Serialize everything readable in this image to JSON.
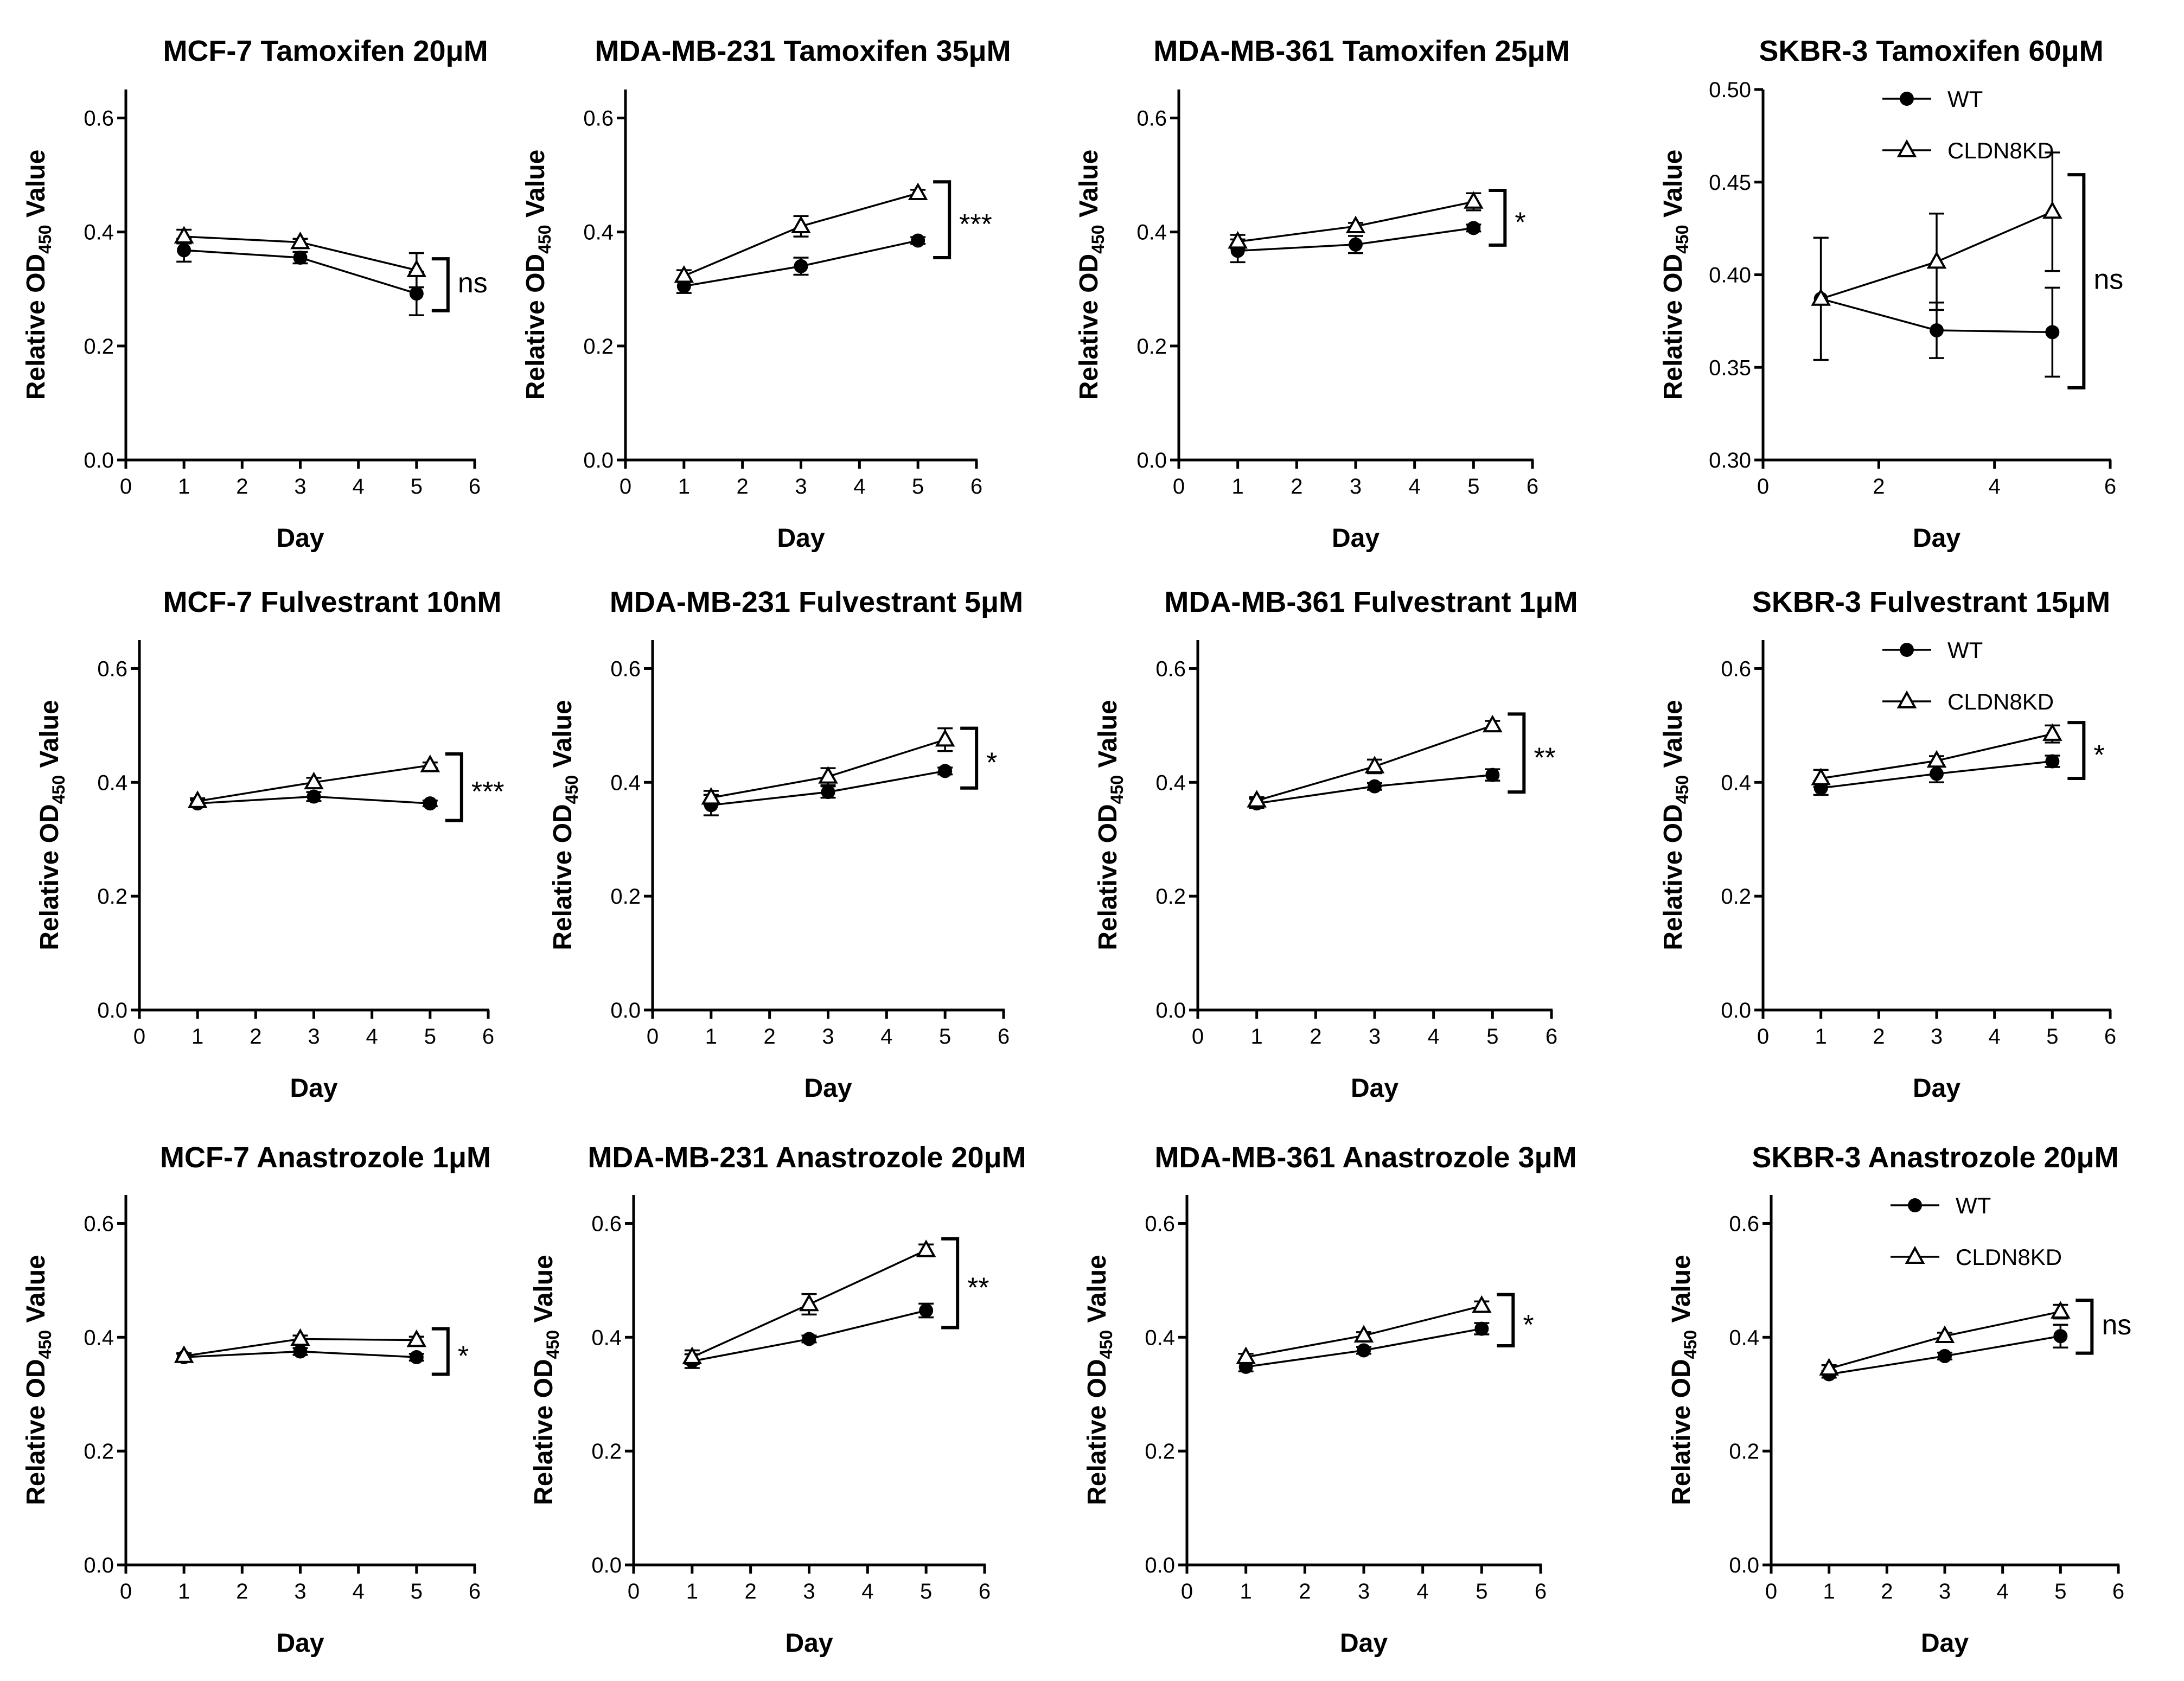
{
  "figure": {
    "legend": {
      "wt_label": "WT",
      "kd_label": "CLDN8KD"
    }
  },
  "chart_data": [
    {
      "type": "line",
      "title": "MCF-7 Tamoxifen 20μM",
      "xlabel": "Day",
      "ylabel": "Relative OD450 Value",
      "xlim": [
        0,
        6
      ],
      "ylim": [
        0,
        0.65
      ],
      "xticks": [
        0,
        1,
        2,
        3,
        4,
        5,
        6
      ],
      "yticks": [
        0.0,
        0.2,
        0.4,
        0.6
      ],
      "ytick_labels": [
        "0.0",
        "0.2",
        "0.4",
        "0.6"
      ],
      "x": [
        1,
        3,
        5
      ],
      "series": [
        {
          "name": "WT",
          "marker": "circle",
          "values": [
            0.368,
            0.355,
            0.292
          ],
          "errors": [
            0.02,
            0.01,
            0.038
          ]
        },
        {
          "name": "CLDN8KD",
          "marker": "triangle",
          "values": [
            0.392,
            0.382,
            0.333
          ],
          "errors": [
            0.012,
            0.006,
            0.03
          ]
        }
      ],
      "significance": "ns",
      "legend_shown": false
    },
    {
      "type": "line",
      "title": "MDA-MB-231 Tamoxifen 35μM",
      "xlabel": "Day",
      "ylabel": "Relative OD450 Value",
      "xlim": [
        0,
        6
      ],
      "ylim": [
        0,
        0.65
      ],
      "xticks": [
        0,
        1,
        2,
        3,
        4,
        5,
        6
      ],
      "yticks": [
        0.0,
        0.2,
        0.4,
        0.6
      ],
      "ytick_labels": [
        "0.0",
        "0.2",
        "0.4",
        "0.6"
      ],
      "x": [
        1,
        3,
        5
      ],
      "series": [
        {
          "name": "WT",
          "marker": "circle",
          "values": [
            0.305,
            0.34,
            0.385
          ],
          "errors": [
            0.012,
            0.015,
            0.006
          ]
        },
        {
          "name": "CLDN8KD",
          "marker": "triangle",
          "values": [
            0.323,
            0.41,
            0.468
          ],
          "errors": [
            0.01,
            0.018,
            0.006
          ]
        }
      ],
      "significance": "***",
      "legend_shown": false
    },
    {
      "type": "line",
      "title": "MDA-MB-361 Tamoxifen 25μM",
      "xlabel": "Day",
      "ylabel": "Relative OD450 Value",
      "xlim": [
        0,
        6
      ],
      "ylim": [
        0,
        0.65
      ],
      "xticks": [
        0,
        1,
        2,
        3,
        4,
        5,
        6
      ],
      "yticks": [
        0.0,
        0.2,
        0.4,
        0.6
      ],
      "ytick_labels": [
        "0.0",
        "0.2",
        "0.4",
        "0.6"
      ],
      "x": [
        1,
        3,
        5
      ],
      "series": [
        {
          "name": "WT",
          "marker": "circle",
          "values": [
            0.367,
            0.378,
            0.407
          ],
          "errors": [
            0.02,
            0.015,
            0.006
          ]
        },
        {
          "name": "CLDN8KD",
          "marker": "triangle",
          "values": [
            0.383,
            0.41,
            0.453
          ],
          "errors": [
            0.012,
            0.006,
            0.015
          ]
        }
      ],
      "significance": "*",
      "legend_shown": false
    },
    {
      "type": "line",
      "title": "SKBR-3 Tamoxifen 60μM",
      "xlabel": "Day",
      "ylabel": "Relative OD450 Value",
      "xlim": [
        0,
        6
      ],
      "ylim": [
        0.3,
        0.5
      ],
      "xticks": [
        0,
        2,
        4,
        6
      ],
      "yticks": [
        0.3,
        0.35,
        0.4,
        0.45,
        0.5
      ],
      "ytick_labels": [
        "0.30",
        "0.35",
        "0.40",
        "0.45",
        "0.50"
      ],
      "x": [
        1,
        3,
        5
      ],
      "series": [
        {
          "name": "WT",
          "marker": "circle",
          "values": [
            0.387,
            0.37,
            0.369
          ],
          "errors": [
            0.033,
            0.015,
            0.024
          ]
        },
        {
          "name": "CLDN8KD",
          "marker": "triangle",
          "values": [
            0.387,
            0.407,
            0.434
          ],
          "errors": [
            0.033,
            0.026,
            0.032
          ]
        }
      ],
      "significance": "ns",
      "legend_shown": true
    },
    {
      "type": "line",
      "title": "MCF-7 Fulvestrant 10nM",
      "xlabel": "Day",
      "ylabel": "Relative OD450 Value",
      "xlim": [
        0,
        6
      ],
      "ylim": [
        0,
        0.65
      ],
      "xticks": [
        0,
        1,
        2,
        3,
        4,
        5,
        6
      ],
      "yticks": [
        0.0,
        0.2,
        0.4,
        0.6
      ],
      "ytick_labels": [
        "0.0",
        "0.2",
        "0.4",
        "0.6"
      ],
      "x": [
        1,
        3,
        5
      ],
      "series": [
        {
          "name": "WT",
          "marker": "circle",
          "values": [
            0.363,
            0.375,
            0.363
          ],
          "errors": [
            0.006,
            0.008,
            0.005
          ]
        },
        {
          "name": "CLDN8KD",
          "marker": "triangle",
          "values": [
            0.367,
            0.4,
            0.43
          ],
          "errors": [
            0.005,
            0.008,
            0.005
          ]
        }
      ],
      "significance": "***",
      "legend_shown": false
    },
    {
      "type": "line",
      "title": "MDA-MB-231 Fulvestrant 5μM",
      "xlabel": "Day",
      "ylabel": "Relative OD450 Value",
      "xlim": [
        0,
        6
      ],
      "ylim": [
        0,
        0.65
      ],
      "xticks": [
        0,
        1,
        2,
        3,
        4,
        5,
        6
      ],
      "yticks": [
        0.0,
        0.2,
        0.4,
        0.6
      ],
      "ytick_labels": [
        "0.0",
        "0.2",
        "0.4",
        "0.6"
      ],
      "x": [
        1,
        3,
        5
      ],
      "series": [
        {
          "name": "WT",
          "marker": "circle",
          "values": [
            0.36,
            0.383,
            0.42
          ],
          "errors": [
            0.018,
            0.01,
            0.006
          ]
        },
        {
          "name": "CLDN8KD",
          "marker": "triangle",
          "values": [
            0.373,
            0.41,
            0.475
          ],
          "errors": [
            0.012,
            0.015,
            0.02
          ]
        }
      ],
      "significance": "*",
      "legend_shown": false
    },
    {
      "type": "line",
      "title": "MDA-MB-361 Fulvestrant 1μM",
      "xlabel": "Day",
      "ylabel": "Relative OD450 Value",
      "xlim": [
        0,
        6
      ],
      "ylim": [
        0,
        0.65
      ],
      "xticks": [
        0,
        1,
        2,
        3,
        4,
        5,
        6
      ],
      "yticks": [
        0.0,
        0.2,
        0.4,
        0.6
      ],
      "ytick_labels": [
        "0.0",
        "0.2",
        "0.4",
        "0.6"
      ],
      "x": [
        1,
        3,
        5
      ],
      "series": [
        {
          "name": "WT",
          "marker": "circle",
          "values": [
            0.363,
            0.393,
            0.413
          ],
          "errors": [
            0.008,
            0.006,
            0.01
          ]
        },
        {
          "name": "CLDN8KD",
          "marker": "triangle",
          "values": [
            0.368,
            0.428,
            0.5
          ],
          "errors": [
            0.006,
            0.012,
            0.008
          ]
        }
      ],
      "significance": "**",
      "legend_shown": false
    },
    {
      "type": "line",
      "title": "SKBR-3 Fulvestrant 15μM",
      "xlabel": "Day",
      "ylabel": "Relative OD450 Value",
      "xlim": [
        0,
        6
      ],
      "ylim": [
        0,
        0.65
      ],
      "xticks": [
        0,
        1,
        2,
        3,
        4,
        5,
        6
      ],
      "yticks": [
        0.0,
        0.2,
        0.4,
        0.6
      ],
      "ytick_labels": [
        "0.0",
        "0.2",
        "0.4",
        "0.6"
      ],
      "x": [
        1,
        3,
        5
      ],
      "series": [
        {
          "name": "WT",
          "marker": "circle",
          "values": [
            0.39,
            0.415,
            0.437
          ],
          "errors": [
            0.012,
            0.015,
            0.01
          ]
        },
        {
          "name": "CLDN8KD",
          "marker": "triangle",
          "values": [
            0.407,
            0.438,
            0.485
          ],
          "errors": [
            0.015,
            0.008,
            0.015
          ]
        }
      ],
      "significance": "*",
      "legend_shown": true
    },
    {
      "type": "line",
      "title": "MCF-7 Anastrozole 1μM",
      "xlabel": "Day",
      "ylabel": "Relative OD450 Value",
      "xlim": [
        0,
        6
      ],
      "ylim": [
        0,
        0.65
      ],
      "xticks": [
        0,
        1,
        2,
        3,
        4,
        5,
        6
      ],
      "yticks": [
        0.0,
        0.2,
        0.4,
        0.6
      ],
      "ytick_labels": [
        "0.0",
        "0.2",
        "0.4",
        "0.6"
      ],
      "x": [
        1,
        3,
        5
      ],
      "series": [
        {
          "name": "WT",
          "marker": "circle",
          "values": [
            0.365,
            0.375,
            0.365
          ],
          "errors": [
            0.006,
            0.006,
            0.006
          ]
        },
        {
          "name": "CLDN8KD",
          "marker": "triangle",
          "values": [
            0.367,
            0.397,
            0.395
          ],
          "errors": [
            0.005,
            0.006,
            0.006
          ]
        }
      ],
      "significance": "*",
      "legend_shown": false
    },
    {
      "type": "line",
      "title": "MDA-MB-231 Anastrozole 20μM",
      "xlabel": "Day",
      "ylabel": "Relative OD450 Value",
      "xlim": [
        0,
        6
      ],
      "ylim": [
        0,
        0.65
      ],
      "xticks": [
        0,
        1,
        2,
        3,
        4,
        5,
        6
      ],
      "yticks": [
        0.0,
        0.2,
        0.4,
        0.6
      ],
      "ytick_labels": [
        "0.0",
        "0.2",
        "0.4",
        "0.6"
      ],
      "x": [
        1,
        3,
        5
      ],
      "series": [
        {
          "name": "WT",
          "marker": "circle",
          "values": [
            0.358,
            0.397,
            0.447
          ],
          "errors": [
            0.012,
            0.006,
            0.012
          ]
        },
        {
          "name": "CLDN8KD",
          "marker": "triangle",
          "values": [
            0.365,
            0.458,
            0.553
          ],
          "errors": [
            0.012,
            0.018,
            0.01
          ]
        }
      ],
      "significance": "**",
      "legend_shown": false
    },
    {
      "type": "line",
      "title": "MDA-MB-361 Anastrozole 3μM",
      "xlabel": "Day",
      "ylabel": "Relative OD450 Value",
      "xlim": [
        0,
        6
      ],
      "ylim": [
        0,
        0.65
      ],
      "xticks": [
        0,
        1,
        2,
        3,
        4,
        5,
        6
      ],
      "yticks": [
        0.0,
        0.2,
        0.4,
        0.6
      ],
      "ytick_labels": [
        "0.0",
        "0.2",
        "0.4",
        "0.6"
      ],
      "x": [
        1,
        3,
        5
      ],
      "series": [
        {
          "name": "WT",
          "marker": "circle",
          "values": [
            0.348,
            0.377,
            0.415
          ],
          "errors": [
            0.008,
            0.006,
            0.01
          ]
        },
        {
          "name": "CLDN8KD",
          "marker": "triangle",
          "values": [
            0.365,
            0.403,
            0.455
          ],
          "errors": [
            0.006,
            0.006,
            0.008
          ]
        }
      ],
      "significance": "*",
      "legend_shown": false
    },
    {
      "type": "line",
      "title": "SKBR-3 Anastrozole 20μM",
      "xlabel": "Day",
      "ylabel": "Relative OD450 Value",
      "xlim": [
        0,
        6
      ],
      "ylim": [
        0,
        0.65
      ],
      "xticks": [
        0,
        1,
        2,
        3,
        4,
        5,
        6
      ],
      "yticks": [
        0.0,
        0.2,
        0.4,
        0.6
      ],
      "ytick_labels": [
        "0.0",
        "0.2",
        "0.4",
        "0.6"
      ],
      "x": [
        1,
        3,
        5
      ],
      "series": [
        {
          "name": "WT",
          "marker": "circle",
          "values": [
            0.335,
            0.367,
            0.402
          ],
          "errors": [
            0.006,
            0.006,
            0.02
          ]
        },
        {
          "name": "CLDN8KD",
          "marker": "triangle",
          "values": [
            0.345,
            0.402,
            0.445
          ],
          "errors": [
            0.006,
            0.006,
            0.012
          ]
        }
      ],
      "significance": "ns",
      "legend_shown": true
    }
  ]
}
